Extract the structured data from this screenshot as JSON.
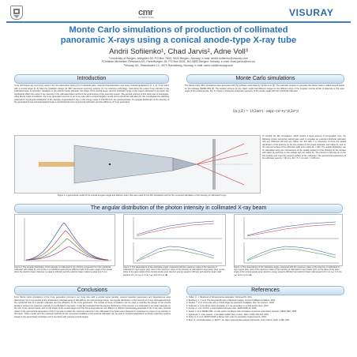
{
  "header": {
    "logo_left": "University of Bergen seal",
    "logo_center": "cmr",
    "logo_center_sub": "COMPUTING",
    "logo_right": "VISURAY"
  },
  "title_line1": "Monte Carlo simulations of production of collimated",
  "title_line2": "panoramic X-rays using a conical anode-type X-ray tube",
  "authors": "Andrii Sofiienko¹, Chad Jarvis², Adne Voll³",
  "affiliations": [
    "¹University of Bergen, Allegaten 55, PO Box 7803, 5020 Bergen, Norway, e-mail: andrii.sofiienko@visuray.com",
    "²Christian Michelsen Research AS, Fantoftvegen 38, PO Box 6031, NO-5892 Bergen, Norway, e-mail: chad.jarvis@cmr.no",
    "³Visuray AS, Strandkaien 10, 4070 Randaberg, Norway, e-mail: adne.voll@visuray.com"
  ],
  "sections": {
    "introduction": "Introduction",
    "monte_carlo": "Monte Carlo simulations",
    "angular": "The angular distribution of the photon intensity in collimated X-ray beam",
    "conclusions": "Conclusions",
    "references": "References"
  },
  "intro_text": "X-ray techniques are commonly used in the non-destructive testing [1] of industrial parts, material characterization and many medical applications [2, 3, 4]. X-ray tubes with a conical target [5, 6] have the irradiation design for 360° panoramic scanning systems [7]. For scanning technology, maximising the output X-ray intensity in the collimated beam is important. Variations in the electron beam diameter, the shape of the conical target, and the inclination angle of the output collimated X-ray beam can significantly affect the output X-ray intensity in the collimated beam and limit the performance of the scanning system. The general purpose of this study was to investigate, using Monte Carlo simulations, the X-ray generation process in an X-ray tube with a conical tungsten anode and a cylindrical collimator [8]. We investigated the following parameters: the angular distribution of the intensity of generated X-rays in the energy range of 270-300 keV, the spectral shape, the angular distribution of the intensity of the generated X-rays and estimated through a cylindrical hole from an external collimator, and the efficiency of X-ray generation.",
  "mc_text": "The Monte Carlo (MC) simulations were generated with the software suite Fluka by Ferrari et al. [9]. The particular program to generate the Monte Carlo is called Geant4 based on the package PENELOPE [9]. The solution scheme for the object model had different ranges for the different sizes of the tungsten conical anode (it depends on the apex angle of the conical anode, Fig. 1). Figure 1 shows the schematic geometry of the anode model with the cylindrical collimator.",
  "formula": "I(x,y,E) = 1/(2πσ²) · exp(−(x²+y²)/(2σ²))",
  "mc_text2": "To simplify the MC simulations, which require a large amount of computation time, the following simple numerical method was used to simulate an external cylindrical collimator with any thickness ΔR and any radius. For this task, it is necessary to know the spatial distribution of the photons on the first surface of the virtual collimator with radius R₁ and on the external surface of the collimator (with outer radius R₂ = ΔR). The spatial distribution can be calculated using two intersections of the spatial positions of the photons on the surface with radius R₁ and then on the surface with two radius R₂. The photons in this way lie on the first surface and cross the second surface of the collimator. The geometrical parameters of the collimator were R₁ = 90 mm, ΔR = 5.7 mm and r = 0.89 mm.",
  "fig1_caption": "Figure 1. A geometrical model of the conical tungsten target and electron beam that were used for the MC simulations and for the numerical calculation of the intensity of collimated X-rays.",
  "fig2_caption": "Figure 2. The angular distribution of the intensity of collimated X-ray photons computed from the cylindrical collimator with radius R₁ and a hole in a cylindrical geometry as different radii of the apex angle of the anode when the electron beam diameter is equal to 100 keV and the electron beam radius is equal to 1.0 mm.",
  "fig3_caption": "Figure 3. The dependence of the inclination angle, measured with the maximum value of the intensity of collimated X-rays (upper plot), and of the maximum value of the intensity of collimated X-rays (lower plot) on the value of the apex angle of the conical anode at an electron energy equal to 100 keV and electron beam radii equal to 0.1 mm (●), 1.0 mm (▲) and 1.5 mm (■).",
  "fig4_caption": "Figure 4. The dependence of the inclination angle, measured with the maximum value of the intensity of collimated X-rays (upper plot), and of the maximum value of the intensity of collimated X-rays (lower plot) on the value of the apex angle of the conical anode at an electron energy equal to 300 keV and electron beam radii equal to 0.1 mm (●), 1.0 mm (▲) and 1.5 mm (■).",
  "conclusions_text": "From Monte Carlo simulations of the X-ray generation process in an X-ray tube with a conical target (anode), several important parameters and dependences were determined: the X-ray spectra at the acceleration potential range of 100-300 kV, the optimal target shape, the angular distribution of the intensity of X-rays collimated through the cylindrical hole of a specific collimator and the efficiency of the X-ray generation. The results of these simulations can be used to optimise the design of the conical anode to achieve the maximum intensity in a collimated X-ray beam. It was demonstrated that the angular distribution of the intensity in a collimated X-ray beam depends on the size of the electron beam and on the shape of the conical target and that these dependences are different at different accelerating potentials of the X-ray tube. Optimal values of the geometrical parameters of the X-ray tube to obtain the maximum intensity in the collimated X-ray beam were observed to maximise the output X-ray intensity in the beam. These results and the proposed methods for the numerical modelling of the external collimator can be used in practical applications to design scanning systems based on the pencil beam technique and X-ray tubes with massive conical targets.",
  "references": [
    "1. Hellier, C. J. Handbook of Nondestructive Evaluation, McGraw-Hill, 2001.",
    "2. Bushberg, J. T. et al. The Essential Physics of Medical Imaging, Lippincott Williams & Wilkins, 2002.",
    "3. Tanaka, Y. et al. X-ray tube with a conical target for panoramic irradiation, Rev. Sci. Instrum., 2008.",
    "4. Sofiienko, A. et al. Monte Carlo simulation of X-ray generation in conical anode tubes, 2013.",
    "5. Ferrari, A. et al. FLUKA: a multi-particle transport code, CERN-2005-10, 2005.",
    "6. Salvat, F. et al. PENELOPE - A code system for Monte Carlo simulation of electron and photon transport, OECD NEA, 2008.",
    "7. Agostinelli, S. et al. Geant4 - a simulation toolkit, Nucl. Instrum. Meth. A 506, 250-303, 2003.",
    "8. Pozzi, S. A. et al. MCNP-PoliMi: a Monte Carlo code for correlation measurements, 2003.",
    "9. Brun, R. and Rademakers, F. ROOT - An object oriented data analysis framework, Nucl. Instrum. Meth. A 389, 1997."
  ],
  "colors": {
    "accent": "#2c72b8",
    "header_fill": "#dbe8f4"
  }
}
